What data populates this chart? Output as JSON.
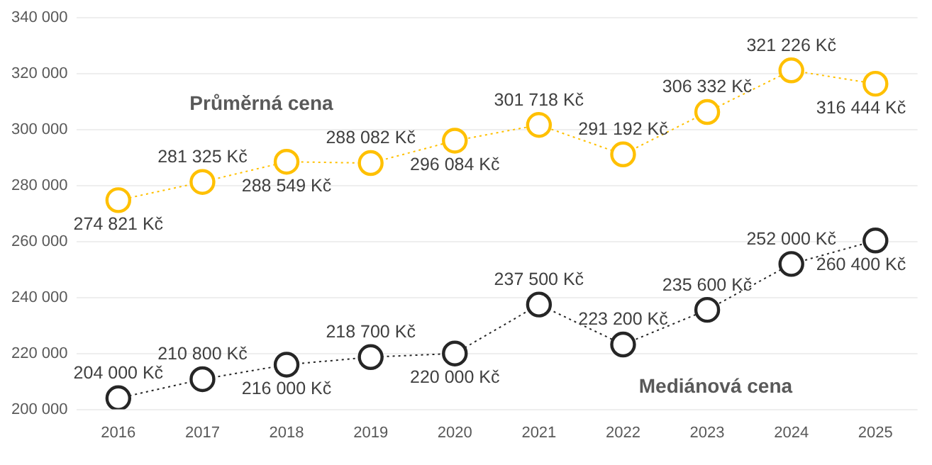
{
  "chart_data": {
    "type": "line",
    "categories": [
      "2016",
      "2017",
      "2018",
      "2019",
      "2020",
      "2021",
      "2022",
      "2023",
      "2024",
      "2025"
    ],
    "series": [
      {
        "name": "Průměrná cena",
        "color": "#ffc000",
        "values": [
          274821,
          281325,
          288549,
          288082,
          296084,
          301718,
          291192,
          306332,
          321226,
          316444
        ],
        "value_labels": [
          "274 821 Kč",
          "281 325 Kč",
          "288 549 Kč",
          "288 082 Kč",
          "296 084 Kč",
          "301 718 Kč",
          "291 192 Kč",
          "306 332 Kč",
          "321 226 Kč",
          "316 444 Kč"
        ]
      },
      {
        "name": "Mediánová cena",
        "color": "#262626",
        "values": [
          204000,
          210800,
          216000,
          218700,
          220000,
          237500,
          223200,
          235600,
          252000,
          260400
        ],
        "value_labels": [
          "204 000 Kč",
          "210 800 Kč",
          "216 000 Kč",
          "218 700 Kč",
          "220 000 Kč",
          "237 500 Kč",
          "223 200 Kč",
          "235 600 Kč",
          "252 000 Kč",
          "260 400 Kč"
        ]
      }
    ],
    "ylim": [
      200000,
      340000
    ],
    "yticks": [
      {
        "value": 200000,
        "label": "200 000"
      },
      {
        "value": 220000,
        "label": "220 000"
      },
      {
        "value": 240000,
        "label": "240 000"
      },
      {
        "value": 260000,
        "label": "260 000"
      },
      {
        "value": 280000,
        "label": "280 000"
      },
      {
        "value": 300000,
        "label": "300 000"
      },
      {
        "value": 320000,
        "label": "320 000"
      },
      {
        "value": 340000,
        "label": "340 000"
      }
    ],
    "grid": "y",
    "legend": false,
    "marker": "circle",
    "line_style": "dotted"
  }
}
